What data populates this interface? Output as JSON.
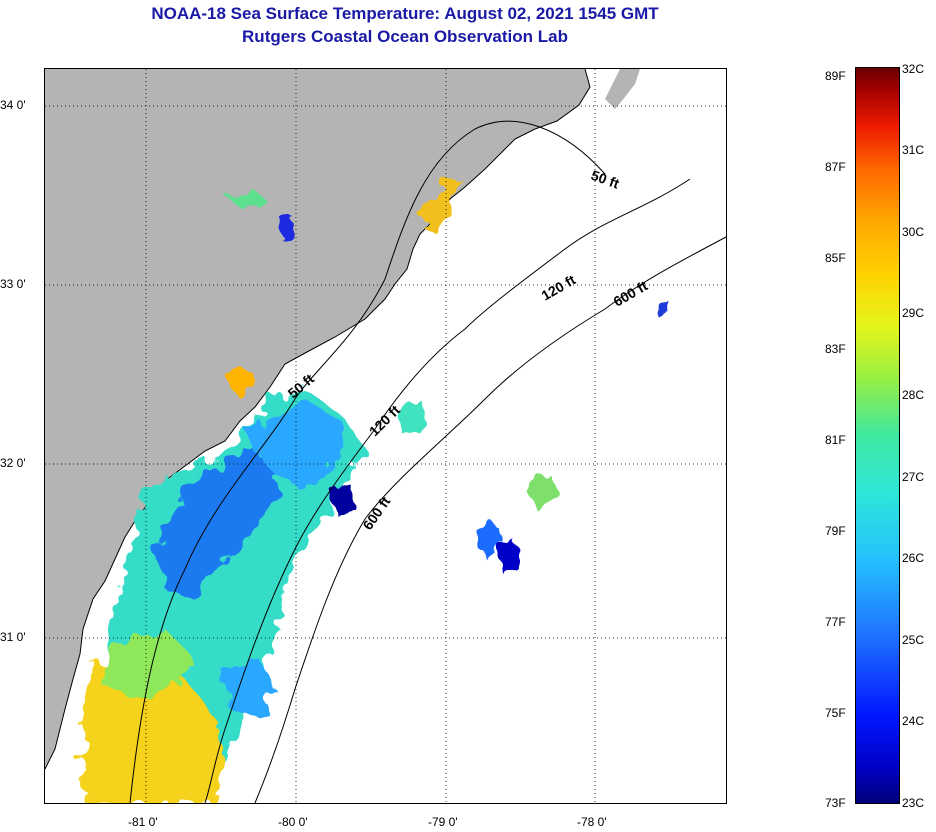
{
  "header": {
    "title": "NOAA-18 Sea Surface Temperature:  August 02, 2021 1545 GMT",
    "subtitle": "Rutgers Coastal Ocean Observation Lab"
  },
  "map": {
    "lat_labels": [
      "34 0'",
      "33 0'",
      "32 0'",
      "31 0'"
    ],
    "lon_labels": [
      "-81 0'",
      "-80 0'",
      "-79 0'",
      "-78 0'"
    ],
    "contour_labels": [
      "50 ft",
      "120 ft",
      "600 ft",
      "50 ft",
      "120 ft",
      "600 ft"
    ]
  },
  "colorbar": {
    "fahrenheit_labels": [
      "89F",
      "87F",
      "85F",
      "83F",
      "81F",
      "79F",
      "77F",
      "75F",
      "73F"
    ],
    "celsius_labels": [
      "32C",
      "31C",
      "30C",
      "29C",
      "28C",
      "27C",
      "26C",
      "25C",
      "24C",
      "23C"
    ]
  },
  "colors": {
    "land": "#b4b4b4",
    "title": "#1a1aa6",
    "no_data": "#ffffff"
  }
}
